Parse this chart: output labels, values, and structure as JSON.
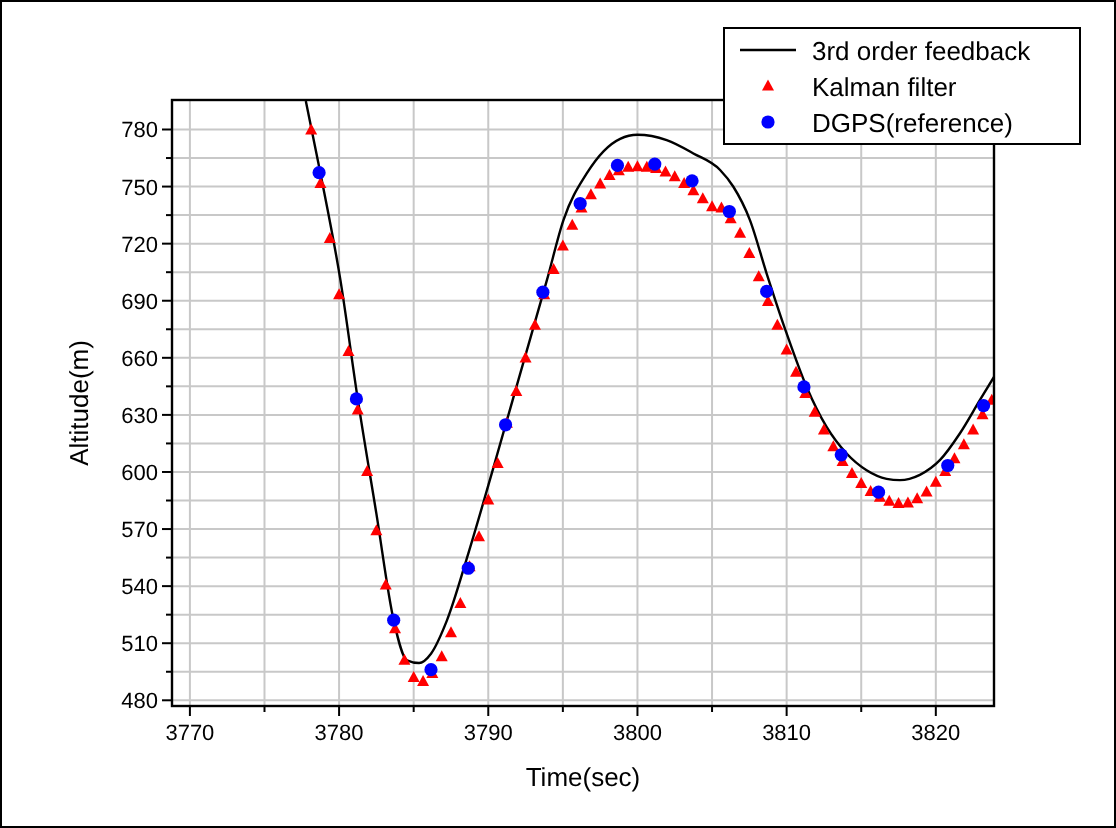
{
  "chart_data": {
    "type": "line",
    "xlabel": "Time(sec)",
    "ylabel": "Altitude(m)",
    "xlim": [
      3768.8,
      3823.9
    ],
    "ylim": [
      477,
      795.5
    ],
    "xticks": [
      3770,
      {
        "value": 3775,
        "label": null
      },
      3780,
      {
        "value": 3785,
        "label": null
      },
      3790,
      {
        "value": 3795,
        "label": null
      },
      3800,
      {
        "value": 3805,
        "label": null
      },
      3810,
      {
        "value": 3815,
        "label": null
      },
      3820
    ],
    "yticks": [
      480,
      {
        "value": 495,
        "label": null
      },
      510,
      {
        "value": 525,
        "label": null
      },
      540,
      {
        "value": 555,
        "label": null
      },
      570,
      {
        "value": 585,
        "label": null
      },
      600,
      {
        "value": 615,
        "label": null
      },
      630,
      {
        "value": 645,
        "label": null
      },
      660,
      {
        "value": 675,
        "label": null
      },
      690,
      {
        "value": 705,
        "label": null
      },
      720,
      {
        "value": 735,
        "label": null
      },
      750,
      {
        "value": 765,
        "label": null
      },
      780
    ],
    "grid": true,
    "legend": "top right",
    "series": [
      {
        "name": "3rd order feedback",
        "color": "#000000",
        "marker": "none",
        "line_style": "solid",
        "x": [
          3777.77,
          3778.75,
          3780.09,
          3781.25,
          3782.5,
          3783.66,
          3784.55,
          3785.36,
          3786.16,
          3787.23,
          3788.66,
          3790.36,
          3792.14,
          3793.93,
          3795.04,
          3796.6,
          3798.84,
          3800,
          3801.96,
          3803.75,
          3805.54,
          3806.43,
          3807.54,
          3808.66,
          3810,
          3811.34,
          3812.68,
          3814.02,
          3815.36,
          3816.7,
          3817.59,
          3818.93,
          3820.27,
          3821.61,
          3822.95,
          3823.9
        ],
        "values": [
          795,
          757,
          700.8,
          638.4,
          578.1,
          522,
          501,
          499.6,
          504.5,
          522,
          557.1,
          602.7,
          651.7,
          700.8,
          732.4,
          756.9,
          775.1,
          777.2,
          774.4,
          767.4,
          758.7,
          749.9,
          732.4,
          704.3,
          672.8,
          644.7,
          623.7,
          609.7,
          600.9,
          596.4,
          595.7,
          598.5,
          606.2,
          620.2,
          637.7,
          650
        ]
      },
      {
        "name": "Kalman filter",
        "type": "scatter",
        "color": "#ff0000",
        "marker": "triangle",
        "x": [
          3778.13,
          3778.75,
          3779.38,
          3780,
          3780.63,
          3781.25,
          3781.88,
          3782.5,
          3783.13,
          3783.75,
          3784.38,
          3785,
          3785.63,
          3786.25,
          3786.88,
          3787.5,
          3788.13,
          3788.75,
          3789.38,
          3790,
          3790.63,
          3791.25,
          3791.88,
          3792.5,
          3793.13,
          3793.75,
          3794.38,
          3795,
          3795.63,
          3796.25,
          3796.88,
          3797.5,
          3798.13,
          3798.75,
          3799.38,
          3800,
          3800.63,
          3801.25,
          3801.88,
          3802.5,
          3803.13,
          3803.75,
          3804.38,
          3805,
          3805.63,
          3806.25,
          3806.88,
          3807.5,
          3808.13,
          3808.75,
          3809.38,
          3810,
          3810.63,
          3811.25,
          3811.88,
          3812.5,
          3813.13,
          3813.75,
          3814.38,
          3815,
          3815.63,
          3816.25,
          3816.88,
          3817.5,
          3818.13,
          3818.75,
          3819.38,
          3820,
          3820.63,
          3821.25,
          3821.88,
          3822.5,
          3823.13,
          3823.75
        ],
        "values": [
          779.7,
          751.6,
          722.6,
          693.1,
          663.3,
          632.5,
          600.2,
          569,
          540.6,
          517.5,
          501,
          491.9,
          489.8,
          494,
          502.8,
          515.4,
          530.8,
          550.1,
          565.9,
          585.2,
          604.4,
          625.5,
          642.3,
          659.8,
          677,
          693.1,
          706.4,
          718.7,
          729.6,
          738.7,
          745.7,
          751.3,
          755.8,
          758.3,
          760.1,
          760.4,
          760.1,
          759.4,
          757.6,
          755.1,
          751.6,
          747.8,
          743.6,
          739.4,
          738.7,
          733.1,
          725.4,
          714.8,
          702.6,
          689.6,
          677,
          664,
          652.4,
          641.2,
          631.4,
          622,
          613.2,
          605.5,
          599.2,
          593.9,
          589.7,
          586.6,
          584.5,
          583.4,
          583.7,
          585.9,
          589.4,
          594.6,
          600.2,
          606.9,
          614.2,
          622,
          630,
          637.7
        ]
      },
      {
        "name": "DGPS(reference)",
        "type": "scatter",
        "color": "#0000ff",
        "marker": "circle",
        "x": [
          3778.66,
          3781.16,
          3783.66,
          3786.16,
          3788.66,
          3791.16,
          3793.66,
          3796.16,
          3798.66,
          3801.16,
          3803.66,
          3806.16,
          3808.66,
          3811.16,
          3813.66,
          3816.16,
          3820.8,
          3823.2
        ],
        "values": [
          757.3,
          638.4,
          522.1,
          496.1,
          549.4,
          624.8,
          694.5,
          741.1,
          761.1,
          761.8,
          753,
          736.9,
          694.9,
          644.7,
          609,
          589.4,
          603.4,
          634.9
        ]
      }
    ]
  }
}
